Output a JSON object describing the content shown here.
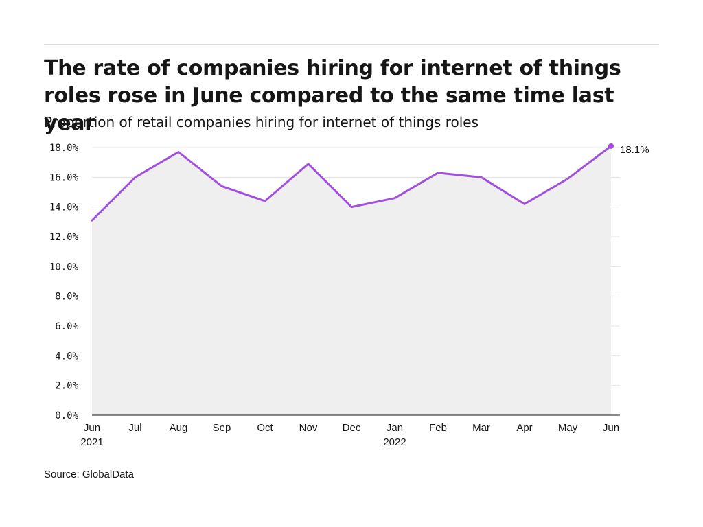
{
  "title": "The rate of companies hiring for internet of things roles rose in June compared to the same time last year",
  "subtitle": "Proportion of retail companies hiring for internet of things roles",
  "source": "Source: GlobalData",
  "colors": {
    "line": "#a24fde",
    "area": "#efefef",
    "grid": "#e3e3e3",
    "axis": "#161616"
  },
  "chart_data": {
    "type": "area",
    "x": [
      "Jun 2021",
      "Jul 2021",
      "Aug 2021",
      "Sep 2021",
      "Oct 2021",
      "Nov 2021",
      "Dec 2021",
      "Jan 2022",
      "Feb 2022",
      "Mar 2022",
      "Apr 2022",
      "May 2022",
      "Jun 2022"
    ],
    "tick_labels": [
      {
        "month": "Jun",
        "year": "2021"
      },
      {
        "month": "Jul",
        "year": ""
      },
      {
        "month": "Aug",
        "year": ""
      },
      {
        "month": "Sep",
        "year": ""
      },
      {
        "month": "Oct",
        "year": ""
      },
      {
        "month": "Nov",
        "year": ""
      },
      {
        "month": "Dec",
        "year": ""
      },
      {
        "month": "Jan",
        "year": "2022"
      },
      {
        "month": "Feb",
        "year": ""
      },
      {
        "month": "Mar",
        "year": ""
      },
      {
        "month": "Apr",
        "year": ""
      },
      {
        "month": "May",
        "year": ""
      },
      {
        "month": "Jun",
        "year": ""
      }
    ],
    "values": [
      13.1,
      16.0,
      17.7,
      15.4,
      14.4,
      16.9,
      14.0,
      14.6,
      16.3,
      16.0,
      14.2,
      15.9,
      18.1
    ],
    "end_label": "18.1%",
    "y_ticks": [
      "0.0%",
      "2.0%",
      "4.0%",
      "6.0%",
      "8.0%",
      "10.0%",
      "12.0%",
      "14.0%",
      "16.0%",
      "18.0%"
    ],
    "ylim": [
      0,
      18
    ],
    "grid": true,
    "xlabel": "",
    "ylabel": ""
  }
}
